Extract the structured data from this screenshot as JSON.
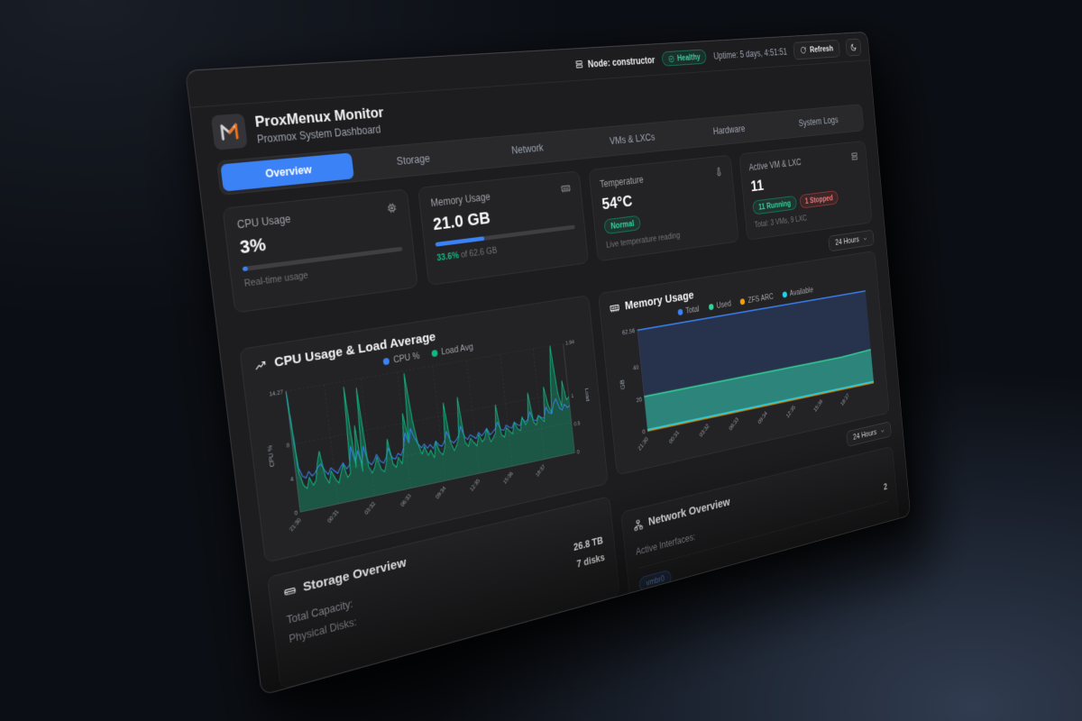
{
  "topbar": {
    "node_label": "Node: constructor",
    "health_badge": "Healthy",
    "uptime": "Uptime: 5 days, 4:51:51",
    "refresh_label": "Refresh"
  },
  "header": {
    "title": "ProxMenux Monitor",
    "subtitle": "Proxmox System Dashboard"
  },
  "tabs": [
    {
      "label": "Overview",
      "active": true
    },
    {
      "label": "Storage",
      "active": false
    },
    {
      "label": "Network",
      "active": false
    },
    {
      "label": "VMs & LXCs",
      "active": false
    },
    {
      "label": "Hardware",
      "active": false
    },
    {
      "label": "System Logs",
      "active": false
    }
  ],
  "stats": {
    "cpu": {
      "label": "CPU Usage",
      "value": "3%",
      "percent": 3,
      "sub": "Real-time usage"
    },
    "memory": {
      "label": "Memory Usage",
      "value": "21.0 GB",
      "percent": 33.6,
      "sub_pct": "33.6%",
      "sub_rest": " of 62.6 GB"
    },
    "temperature": {
      "label": "Temperature",
      "value": "54°C",
      "badge": "Normal",
      "sub": "Live temperature reading"
    },
    "vms": {
      "label": "Active VM & LXC",
      "value": "11",
      "badge_running": "11 Running",
      "badge_stopped": "1 Stopped",
      "sub": "Total: 3 VMs, 9 LXC"
    }
  },
  "time_selector": {
    "label": "24 Hours"
  },
  "chart_data": [
    {
      "type": "line",
      "title": "CPU Usage & Load Average",
      "x_labels": [
        "21:30",
        "00:31",
        "03:32",
        "06:33",
        "09:34",
        "12:35",
        "15:36",
        "18:37"
      ],
      "x_step": 0.1257,
      "left": {
        "title": "CPU %",
        "max": 14.27,
        "ticks": [
          {
            "v": 0,
            "l": "0"
          },
          {
            "v": 4,
            "l": "4"
          },
          {
            "v": 8,
            "l": "8"
          },
          {
            "v": 14.27,
            "l": "14.27"
          }
        ]
      },
      "right": {
        "title": "Load",
        "max": 1.94,
        "ticks": [
          {
            "v": 0,
            "l": "0"
          },
          {
            "v": 0.5,
            "l": "0.5"
          },
          {
            "v": 1,
            "l": "1"
          },
          {
            "v": 1.94,
            "l": "1.94"
          }
        ]
      },
      "series": [
        {
          "name": "CPU %",
          "color": "#3b82f6",
          "axis": "left",
          "fill": false,
          "stroke_width": 1.3,
          "values": [
            14.27,
            5.2,
            4.1,
            3.8,
            4.5,
            3.9,
            4.2,
            4.8,
            5.1,
            4.3,
            3.7,
            4.4,
            4.0,
            3.6,
            4.2,
            4.7,
            3.9,
            4.3,
            6.5,
            4.4,
            5.8,
            4.1,
            6.2,
            4.3,
            3.8,
            4.2,
            4.9,
            4.0,
            3.7,
            4.3,
            5.4,
            4.1,
            3.9,
            4.5,
            4.2,
            5.0,
            6.8,
            5.5,
            7.2,
            6.0,
            5.2,
            4.6,
            5.0,
            4.4,
            4.8,
            4.2,
            5.1,
            4.5,
            4.3,
            4.9,
            6.0,
            4.8,
            4.4,
            4.7,
            5.2,
            6.3,
            4.9,
            4.5,
            5.0,
            4.7,
            4.4,
            5.1,
            4.6,
            4.9,
            5.4,
            4.5,
            4.8,
            5.1,
            5.9,
            4.9,
            4.7,
            5.3,
            5.0,
            4.8,
            5.5,
            5.1,
            4.9,
            5.8,
            5.2,
            5.5,
            6.4,
            5.3,
            5.1,
            5.7,
            5.4,
            5.2,
            6.6,
            5.8,
            5.6,
            6.8,
            7.4,
            6.2,
            5.8,
            6.5,
            6.0,
            6.2
          ]
        },
        {
          "name": "Load Avg",
          "color": "#10b981",
          "axis": "right",
          "fill": true,
          "fill_opacity": 0.35,
          "stroke_width": 1.2,
          "values": [
            1.94,
            0.62,
            0.41,
            0.35,
            0.52,
            0.38,
            0.45,
            0.72,
            0.9,
            0.48,
            0.36,
            0.55,
            0.42,
            0.33,
            0.48,
            0.61,
            0.39,
            0.45,
            1.85,
            0.52,
            1.2,
            0.44,
            1.8,
            0.5,
            0.38,
            0.47,
            0.62,
            0.41,
            0.36,
            0.52,
            0.88,
            0.46,
            0.39,
            0.55,
            0.43,
            0.65,
            1.25,
            0.8,
            1.9,
            1.1,
            0.7,
            0.52,
            0.64,
            0.48,
            0.56,
            0.42,
            0.68,
            0.5,
            0.44,
            0.58,
            1.3,
            0.62,
            0.47,
            0.55,
            0.68,
            1.35,
            0.58,
            0.49,
            0.62,
            0.54,
            0.47,
            0.66,
            0.52,
            0.58,
            0.72,
            0.49,
            0.55,
            0.63,
            1.1,
            0.58,
            0.52,
            0.68,
            0.61,
            0.55,
            0.74,
            0.62,
            0.58,
            0.81,
            0.66,
            0.72,
            1.2,
            0.68,
            0.62,
            0.78,
            0.71,
            0.65,
            1.25,
            0.92,
            0.78,
            1.45,
            1.94,
            1.1,
            0.85,
            1.3,
            0.95,
            1.0
          ]
        }
      ]
    },
    {
      "type": "area",
      "title": "Memory Usage",
      "x_labels": [
        "21:30",
        "00:31",
        "03:32",
        "06:33",
        "09:34",
        "12:35",
        "15:36",
        "18:37"
      ],
      "x_step": 0.1257,
      "left": {
        "title": "GB",
        "max": 62.56,
        "ticks": [
          {
            "v": 0,
            "l": "0"
          },
          {
            "v": 20,
            "l": "20"
          },
          {
            "v": 40,
            "l": "40"
          },
          {
            "v": 62.56,
            "l": "62.56"
          }
        ]
      },
      "series": [
        {
          "name": "Total",
          "color": "#3b82f6",
          "axis": "left",
          "fill": true,
          "fill_color": "#27334d",
          "fill_opacity": 1,
          "stroke_width": 1.8,
          "values": [
            62.56,
            62.56,
            62.56,
            62.56,
            62.56,
            62.56,
            62.56,
            62.56
          ]
        },
        {
          "name": "Used",
          "color": "#34d399",
          "axis": "left",
          "fill": true,
          "fill_color": "#2e9383",
          "fill_opacity": 0.85,
          "stroke_width": 1.8,
          "values": [
            21.4,
            21.4,
            21.42,
            21.45,
            21.4,
            21.38,
            21.4,
            22.6
          ]
        },
        {
          "name": "ZFS ARC",
          "color": "#f59e0b",
          "axis": "left",
          "fill": false,
          "stroke_width": 1.2,
          "values": [
            0,
            0,
            0,
            0,
            0,
            0,
            0,
            0
          ]
        },
        {
          "name": "Available",
          "color": "#22d3ee",
          "axis": "left",
          "fill": false,
          "stroke_width": 1.6,
          "values": [
            0.8,
            0.8,
            0.8,
            0.8,
            0.8,
            0.8,
            0.8,
            0.8
          ]
        }
      ]
    }
  ],
  "storage": {
    "title": "Storage Overview",
    "rows": [
      {
        "label": "Total Capacity:",
        "value": "26.8 TB"
      },
      {
        "label": "Physical Disks:",
        "value": "7 disks"
      }
    ]
  },
  "network": {
    "title": "Network Overview",
    "rows": [
      {
        "label": "Active Interfaces:",
        "value": "2"
      }
    ],
    "interface_badge": "vmbr0"
  },
  "colors": {
    "accent": "#3b82f6",
    "green": "#10b981",
    "orange": "#f59e0b",
    "cyan": "#06b6d4",
    "red": "#ef4444"
  }
}
